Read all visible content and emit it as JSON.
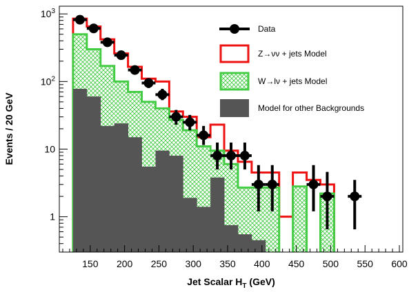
{
  "chart_data": {
    "type": "histogram",
    "title": "",
    "xlabel": "Jet Scalar H",
    "xlabel_sub": "T",
    "xlabel_unit": " (GeV)",
    "ylabel": "Events / 20 GeV",
    "xlim": [
      105,
      605
    ],
    "ylim": [
      0.3,
      1300
    ],
    "yscale": "log",
    "grid": false,
    "legend_position": "top-right",
    "x_ticks": [
      150,
      200,
      250,
      300,
      350,
      400,
      450,
      500,
      550,
      600
    ],
    "x_tick_labels": [
      "150",
      "200",
      "250",
      "300",
      "350",
      "400",
      "450",
      "500",
      "550",
      "600"
    ],
    "y_ticks": [
      {
        "value": 1,
        "base": "1",
        "sup": ""
      },
      {
        "value": 10,
        "base": "10",
        "sup": ""
      },
      {
        "value": 100,
        "base": "10",
        "sup": "2"
      },
      {
        "value": 1000,
        "base": "10",
        "sup": "3"
      }
    ],
    "bin_edges": [
      125,
      145,
      165,
      185,
      205,
      225,
      245,
      265,
      285,
      305,
      325,
      345,
      365,
      385,
      405,
      425,
      445,
      465,
      485,
      505
    ],
    "series": [
      {
        "name": "Z→νν + jets Model",
        "kind": "step",
        "color": "#ee1111",
        "values": [
          850,
          650,
          420,
          260,
          165,
          110,
          100,
          36,
          30,
          15,
          23,
          9.5,
          6.5,
          4.5,
          4.5,
          1.0,
          4.5,
          3.5,
          3.0
        ]
      },
      {
        "name": "W→lν + jets Model",
        "kind": "hatched",
        "color": "#44cc44",
        "values": [
          500,
          300,
          170,
          100,
          70,
          50,
          40,
          27,
          19,
          11,
          9.5,
          6.0,
          2.7,
          2.7,
          2.7,
          0.3,
          2.8,
          0.3,
          2.2
        ]
      },
      {
        "name": "Model for other Backgrounds",
        "kind": "filled",
        "color": "#555555",
        "values": [
          78,
          60,
          22,
          24,
          15,
          5.5,
          9.5,
          8.0,
          1.9,
          1.4,
          3.8,
          0.75,
          0.55,
          0.45,
          0.3,
          0.3,
          0.3,
          0.3,
          0.3
        ]
      }
    ],
    "data_points": {
      "name": "Data",
      "color": "#000000",
      "points": [
        {
          "x": 135,
          "y": 820,
          "lo": 760,
          "hi": 880
        },
        {
          "x": 155,
          "y": 610,
          "lo": 560,
          "hi": 665
        },
        {
          "x": 175,
          "y": 380,
          "lo": 340,
          "hi": 420
        },
        {
          "x": 195,
          "y": 245,
          "lo": 215,
          "hi": 280
        },
        {
          "x": 215,
          "y": 148,
          "lo": 128,
          "hi": 172
        },
        {
          "x": 235,
          "y": 95,
          "lo": 80,
          "hi": 112
        },
        {
          "x": 255,
          "y": 64,
          "lo": 53,
          "hi": 78
        },
        {
          "x": 275,
          "y": 30,
          "lo": 23,
          "hi": 38
        },
        {
          "x": 295,
          "y": 25,
          "lo": 19,
          "hi": 32
        },
        {
          "x": 315,
          "y": 16,
          "lo": 11.5,
          "hi": 22
        },
        {
          "x": 335,
          "y": 8,
          "lo": 5.0,
          "hi": 12.5
        },
        {
          "x": 355,
          "y": 8,
          "lo": 5.0,
          "hi": 12.5
        },
        {
          "x": 375,
          "y": 8,
          "lo": 5.0,
          "hi": 12.5
        },
        {
          "x": 395,
          "y": 3,
          "lo": 1.2,
          "hi": 5.8
        },
        {
          "x": 415,
          "y": 3,
          "lo": 1.2,
          "hi": 5.8
        },
        {
          "x": 475,
          "y": 3,
          "lo": 1.2,
          "hi": 5.8
        },
        {
          "x": 495,
          "y": 2,
          "lo": 0.65,
          "hi": 4.6
        },
        {
          "x": 535,
          "y": 2,
          "lo": 0.65,
          "hi": 3.5
        }
      ]
    },
    "legend": [
      {
        "label": "Data",
        "kind": "data"
      },
      {
        "label": "Z→νν + jets Model",
        "kind": "step"
      },
      {
        "label": "W→lν + jets Model",
        "kind": "hatched"
      },
      {
        "label": "Model for other Backgrounds",
        "kind": "filled"
      }
    ]
  }
}
